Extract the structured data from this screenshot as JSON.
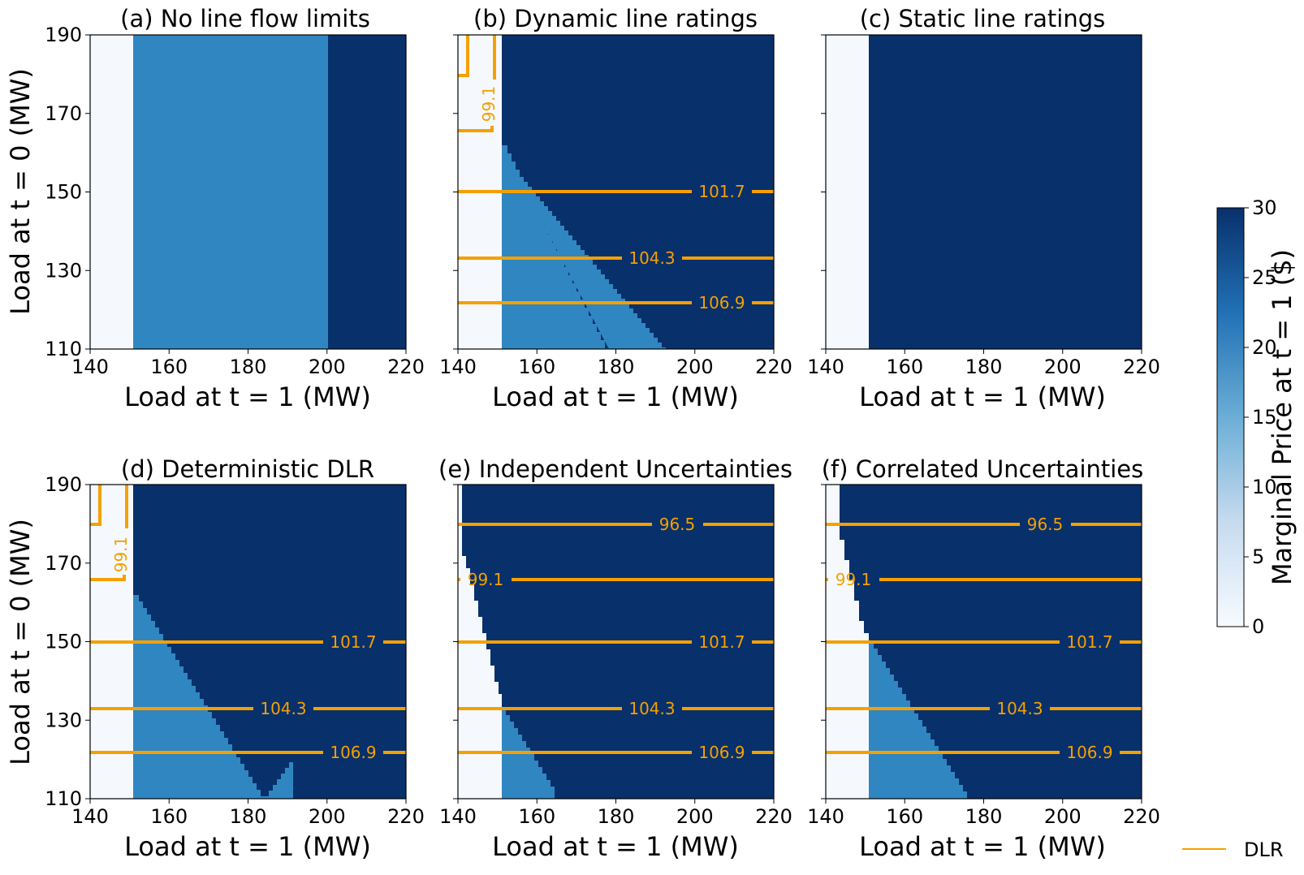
{
  "chart_data": [
    {
      "type": "heatmap",
      "title": "(a) No line flow limits",
      "xlabel": "Load at t = 1 (MW)",
      "ylabel": "Load at t = 0 (MW)",
      "xlim": [
        140,
        220
      ],
      "ylim": [
        110,
        190
      ],
      "xticks": [
        "140",
        "160",
        "180",
        "200",
        "220"
      ],
      "yticks": [
        "110",
        "130",
        "150",
        "170",
        "190"
      ],
      "price_regions": [
        {
          "x_from": 140,
          "x_to": 151,
          "price": 0
        },
        {
          "x_from": 151,
          "x_to": 200,
          "price": 20
        },
        {
          "x_from": 200,
          "x_to": 220,
          "price": 30
        }
      ],
      "boundary": null,
      "contours": []
    },
    {
      "type": "heatmap",
      "title": "(b) Dynamic line ratings",
      "xlabel": "Load at t = 1 (MW)",
      "xlim": [
        140,
        220
      ],
      "ylim": [
        110,
        190
      ],
      "xticks": [
        "140",
        "160",
        "180",
        "200",
        "220"
      ],
      "boundary": {
        "low_edge": 151,
        "y_top": 162,
        "slope_points": [
          [
            151,
            162
          ],
          [
            192.5,
            110
          ]
        ]
      },
      "top_white_x": 151,
      "contours": [
        {
          "label": "101.7",
          "y": 150
        },
        {
          "label": "104.3",
          "y": 133
        },
        {
          "label": "106.9",
          "y": 122
        }
      ],
      "step_contour": {
        "label": "99.1"
      }
    },
    {
      "type": "heatmap",
      "title": "(c) Static line ratings",
      "xlabel": "Load at t = 1 (MW)",
      "xlim": [
        140,
        220
      ],
      "ylim": [
        110,
        190
      ],
      "xticks": [
        "140",
        "160",
        "180",
        "200",
        "220"
      ],
      "price_regions": [
        {
          "x_from": 140,
          "x_to": 151,
          "price": 0
        },
        {
          "x_from": 151,
          "x_to": 220,
          "price": 30
        }
      ],
      "boundary": null,
      "contours": []
    },
    {
      "type": "heatmap",
      "title": "(d) Deterministic DLR",
      "xlabel": "Load at t = 1 (MW)",
      "ylabel": "Load at t = 0 (MW)",
      "xlim": [
        140,
        220
      ],
      "ylim": [
        110,
        190
      ],
      "xticks": [
        "140",
        "160",
        "180",
        "200",
        "220"
      ],
      "yticks": [
        "110",
        "130",
        "150",
        "170",
        "190"
      ],
      "boundary": {
        "low_edge": 151,
        "y_top": 162,
        "slope_points": [
          [
            151,
            162
          ],
          [
            192.5,
            110
          ]
        ]
      },
      "top_white_x": 151,
      "contours": [
        {
          "label": "101.7",
          "y": 150
        },
        {
          "label": "104.3",
          "y": 133
        },
        {
          "label": "106.9",
          "y": 122
        }
      ],
      "step_contour": {
        "label": "99.1"
      }
    },
    {
      "type": "heatmap",
      "title": "(e) Independent Uncertainties",
      "xlabel": "Load at t = 1 (MW)",
      "xlim": [
        140,
        220
      ],
      "ylim": [
        110,
        190
      ],
      "xticks": [
        "140",
        "160",
        "180",
        "200",
        "220"
      ],
      "white_edge_points": [
        [
          141,
          190
        ],
        [
          141,
          172
        ],
        [
          146,
          150
        ],
        [
          151,
          133
        ],
        [
          151,
          110
        ]
      ],
      "boundary": {
        "low_edge": 151,
        "y_top": 133,
        "slope_points": [
          [
            151,
            133
          ],
          [
            168,
            110
          ]
        ]
      },
      "contours": [
        {
          "label": "96.5",
          "y": 180
        },
        {
          "label": "99.1",
          "y": 166
        },
        {
          "label": "101.7",
          "y": 150
        },
        {
          "label": "104.3",
          "y": 133
        },
        {
          "label": "106.9",
          "y": 122
        }
      ]
    },
    {
      "type": "heatmap",
      "title": "(f) Correlated Uncertainties",
      "xlabel": "Load at t = 1 (MW)",
      "xlim": [
        140,
        220
      ],
      "ylim": [
        110,
        190
      ],
      "xticks": [
        "140",
        "160",
        "180",
        "200",
        "220"
      ],
      "white_edge_points": [
        [
          143.5,
          190
        ],
        [
          143.5,
          176
        ],
        [
          151,
          150
        ],
        [
          151,
          110
        ]
      ],
      "boundary": {
        "low_edge": 151,
        "y_top": 150,
        "slope_points": [
          [
            151,
            150
          ],
          [
            177,
            110
          ]
        ]
      },
      "contours": [
        {
          "label": "96.5",
          "y": 180
        },
        {
          "label": "99.1",
          "y": 166
        },
        {
          "label": "101.7",
          "y": 150
        },
        {
          "label": "104.3",
          "y": 133
        },
        {
          "label": "106.9",
          "y": 122
        }
      ]
    }
  ],
  "colorbar": {
    "label": "Marginal Price at t = 1 ($)",
    "range": [
      0,
      30
    ],
    "ticks": [
      "0",
      "5",
      "10",
      "15",
      "20",
      "25",
      "30"
    ]
  },
  "legend": {
    "label": "DLR",
    "color": "#f5a000"
  },
  "colors": {
    "low": "#f5f9fe",
    "mid": "#3086c1",
    "high": "#08306b",
    "contour": "#f5a000"
  }
}
